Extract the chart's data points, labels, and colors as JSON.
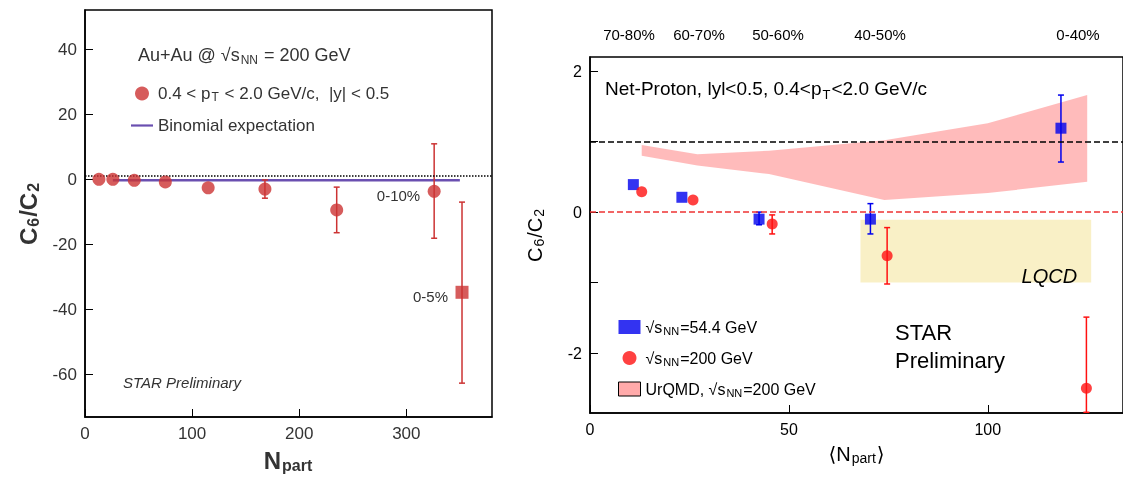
{
  "chart_data": [
    {
      "type": "scatter",
      "xlabel": "N$_{part}$",
      "ylabel": "C$_{6}$/C$_{2}$",
      "xlim": [
        0,
        380
      ],
      "xticks": [
        0,
        100,
        200,
        300
      ],
      "ylim": [
        -73,
        52
      ],
      "yticks": [
        -60,
        -40,
        -20,
        0,
        20,
        40
      ],
      "legend": "top",
      "annotations": [
        "Au+Au @ √s$_{NN}$ = 200 GeV",
        {
          "text": "0-10%",
          "x": 326,
          "y": -3.7
        },
        {
          "text": "0-5%",
          "x": 352,
          "y": -34.7
        },
        "STAR Preliminary"
      ],
      "ref_lines": [
        {
          "axis": "y",
          "value": 1,
          "line_style": "dotted",
          "color": "#000000"
        }
      ],
      "series": [
        {
          "name": "0.4 < p$_{T}$ < 2.0 GeV/c,  |y| < 0.5",
          "marker": "circle",
          "color": "#cc3333",
          "x": [
            13,
            26,
            46,
            75,
            115,
            168,
            235,
            326
          ],
          "values": [
            0,
            0,
            -0.3,
            -0.8,
            -2.6,
            -3,
            -9.4,
            -3.7
          ],
          "errors": [
            null,
            null,
            null,
            null,
            null,
            [
              -5.8,
              -0.2
            ],
            [
              -16.4,
              -2.4
            ],
            [
              -18.1,
              10.9
            ]
          ]
        },
        {
          "marker": "square",
          "color": "#cc3333",
          "x": [
            352
          ],
          "values": [
            -34.7
          ],
          "errors": [
            [
              -62.6,
              -7
            ]
          ]
        },
        {
          "name": "Binomial expectation",
          "type": "line",
          "marker": "none",
          "color": "#6a4fb0",
          "x": [
            26,
            350
          ],
          "values": [
            -0.3,
            -0.3
          ]
        }
      ]
    },
    {
      "type": "scatter",
      "xlabel": "⟨N$_{part}$⟩",
      "ylabel": "C$_{6}$/C$_{2}$",
      "xlim": [
        0,
        134
      ],
      "xticks": [
        0,
        50,
        100
      ],
      "ylim": [
        -2.85,
        2.2
      ],
      "yticks": [
        -2,
        {
          "value": -1,
          "label": null
        },
        0,
        {
          "value": 1,
          "label": null
        },
        2
      ],
      "legend": "bottom left",
      "ref_lines": [
        {
          "axis": "y",
          "value": 1,
          "line_style": "dashed",
          "color": "#000000"
        },
        {
          "axis": "y",
          "value": 0,
          "line_style": "dashed",
          "color": "#ee3333"
        }
      ],
      "annotations": [
        "Net-Proton, lyl<0.5, 0.4<p$_{T}$<2.0 GeV/c",
        "STAR Preliminary",
        {
          "text": "LQCD",
          "x": 126,
          "y": -0.85
        },
        "70-80%",
        "60-70%",
        "50-60%",
        "40-50%",
        "0-40%"
      ],
      "series": [
        {
          "name": "√s$_{NN}$=54.4 GeV",
          "marker": "square",
          "color": "#0000ee",
          "x": [
            10.9,
            23.1,
            42.5,
            70.5,
            118.4
          ],
          "values": [
            0.39,
            0.21,
            -0.1,
            -0.1,
            1.19
          ],
          "errors": [
            null,
            null,
            [
              -0.18,
              0
            ],
            [
              -0.31,
              0.12
            ],
            [
              0.71,
              1.66
            ]
          ]
        },
        {
          "name": "√s$_{NN}$=200 GeV",
          "marker": "circle",
          "color": "#ff1111",
          "x": [
            13,
            25.9,
            45.8,
            74.7,
            124.8
          ],
          "values": [
            0.29,
            0.17,
            -0.17,
            -0.62,
            -2.5
          ],
          "errors": [
            null,
            null,
            [
              -0.31,
              -0.04
            ],
            [
              -1.02,
              -0.22
            ],
            [
              -2.84,
              -1.49
            ]
          ]
        },
        {
          "name": "UrQMD, √s$_{NN}$=200 GeV",
          "type": "area",
          "color": "#ffaaaa",
          "x": [
            13,
            27,
            45,
            74,
            100,
            125
          ],
          "values": [
            null,
            null,
            null,
            null,
            null,
            null
          ],
          "lower": [
            0.8,
            0.66,
            0.54,
            0.17,
            0.27,
            0.43
          ],
          "upper": [
            0.95,
            0.82,
            0.87,
            1.02,
            1.26,
            1.66
          ]
        },
        {
          "type": "area",
          "color": "#f8ecb8",
          "x": [
            68,
            126
          ],
          "values": [
            null,
            null
          ],
          "lower": [
            -1,
            -1
          ],
          "upper": [
            -0.11,
            -0.11
          ]
        }
      ]
    }
  ]
}
